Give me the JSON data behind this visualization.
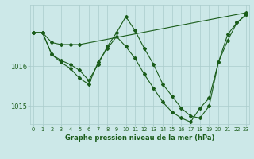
{
  "title": "Graphe pression niveau de la mer (hPa)",
  "bg_color": "#cce8e8",
  "line_color": "#1a5c1a",
  "grid_color": "#aacccc",
  "xmin": 0,
  "xmax": 23,
  "ymin": 1014.55,
  "ymax": 1017.55,
  "yticks": [
    1015,
    1016
  ],
  "xticks": [
    0,
    1,
    2,
    3,
    4,
    5,
    6,
    7,
    8,
    9,
    10,
    11,
    12,
    13,
    14,
    15,
    16,
    17,
    18,
    19,
    20,
    21,
    22,
    23
  ],
  "line1": {
    "x": [
      0,
      1,
      2,
      3,
      4,
      5,
      23
    ],
    "y": [
      1016.85,
      1016.85,
      1016.6,
      1016.55,
      1016.55,
      1016.55,
      1017.35
    ]
  },
  "line2": {
    "x": [
      0,
      1,
      2,
      3,
      4,
      5,
      6,
      7,
      8,
      9,
      10,
      11,
      12,
      13,
      14,
      15,
      16,
      17,
      18,
      19,
      20,
      21,
      22,
      23
    ],
    "y": [
      1016.85,
      1016.85,
      1016.3,
      1016.15,
      1016.05,
      1015.9,
      1015.65,
      1016.05,
      1016.5,
      1016.85,
      1017.25,
      1016.9,
      1016.45,
      1016.05,
      1015.55,
      1015.25,
      1014.95,
      1014.75,
      1014.7,
      1015.0,
      1016.1,
      1016.65,
      1017.1,
      1017.3
    ]
  },
  "line3": {
    "x": [
      0,
      1,
      2,
      3,
      4,
      5,
      6,
      7,
      8,
      9,
      10,
      11,
      12,
      13,
      14,
      15,
      16,
      17,
      18,
      19,
      20,
      21,
      22,
      23
    ],
    "y": [
      1016.85,
      1016.85,
      1016.3,
      1016.1,
      1015.95,
      1015.7,
      1015.55,
      1016.1,
      1016.45,
      1016.75,
      1016.5,
      1016.2,
      1015.8,
      1015.45,
      1015.1,
      1014.85,
      1014.7,
      1014.6,
      1014.95,
      1015.2,
      1016.1,
      1016.8,
      1017.1,
      1017.3
    ]
  }
}
